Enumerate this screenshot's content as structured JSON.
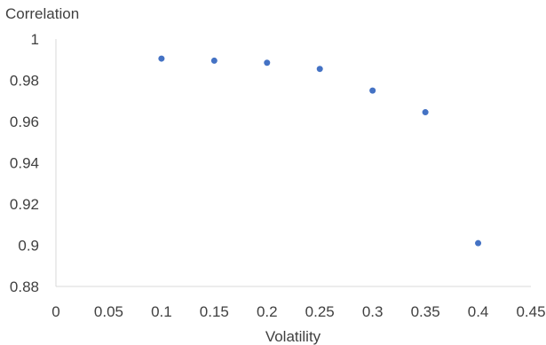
{
  "chart_data": {
    "type": "scatter",
    "title": "",
    "xlabel": "Volatility",
    "ylabel": "Correlation",
    "xlim": [
      0,
      0.45
    ],
    "ylim": [
      0.88,
      1
    ],
    "x_ticks": [
      "0",
      "0.05",
      "0.1",
      "0.15",
      "0.2",
      "0.25",
      "0.3",
      "0.35",
      "0.4",
      "0.45"
    ],
    "y_ticks": [
      "0.88",
      "0.9",
      "0.92",
      "0.94",
      "0.96",
      "0.98",
      "1"
    ],
    "grid": false,
    "legend": "none",
    "marker_color": "#4472c4",
    "series": [
      {
        "x": [
          0.1,
          0.15,
          0.2,
          0.25,
          0.3,
          0.35,
          0.4
        ],
        "y": [
          0.9905,
          0.9895,
          0.9885,
          0.9855,
          0.975,
          0.9645,
          0.901
        ]
      }
    ]
  }
}
